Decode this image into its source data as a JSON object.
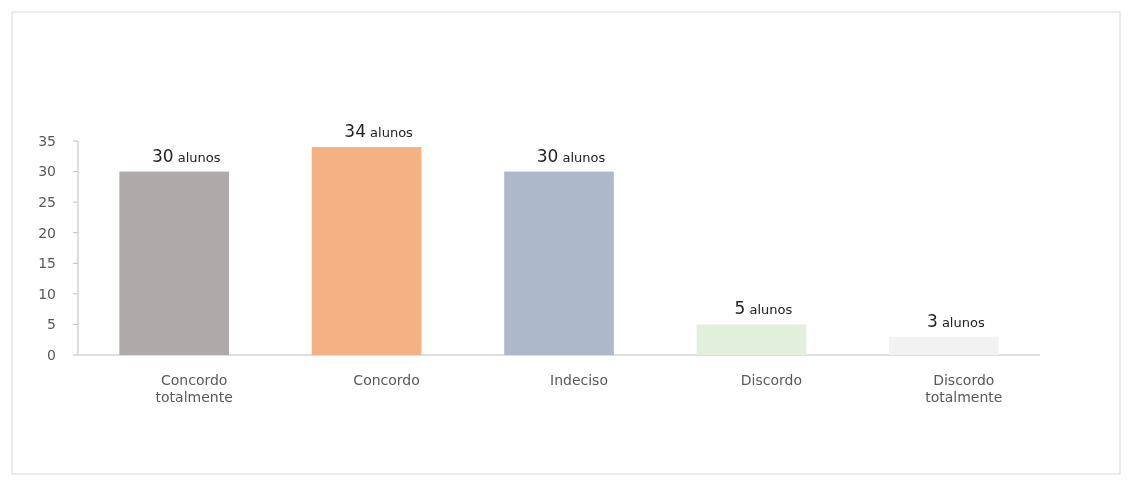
{
  "chart_data": {
    "type": "bar",
    "categories": [
      "Concordo totalmente",
      "Concordo",
      "Indeciso",
      "Discordo",
      "Discordo totalmente"
    ],
    "values": [
      30,
      34,
      30,
      5,
      3
    ],
    "colors": [
      "#aeaaa9",
      "#f4b183",
      "#adb9ca",
      "#e2efda",
      "#f2f2f2"
    ],
    "value_labels": [
      "30 alunos",
      "34 alunos",
      "30 alunos",
      "5 alunos",
      "3 alunos"
    ],
    "ylim": [
      0,
      35
    ],
    "yticks": [
      0,
      5,
      10,
      15,
      20,
      25,
      30,
      35
    ],
    "grid": false
  }
}
